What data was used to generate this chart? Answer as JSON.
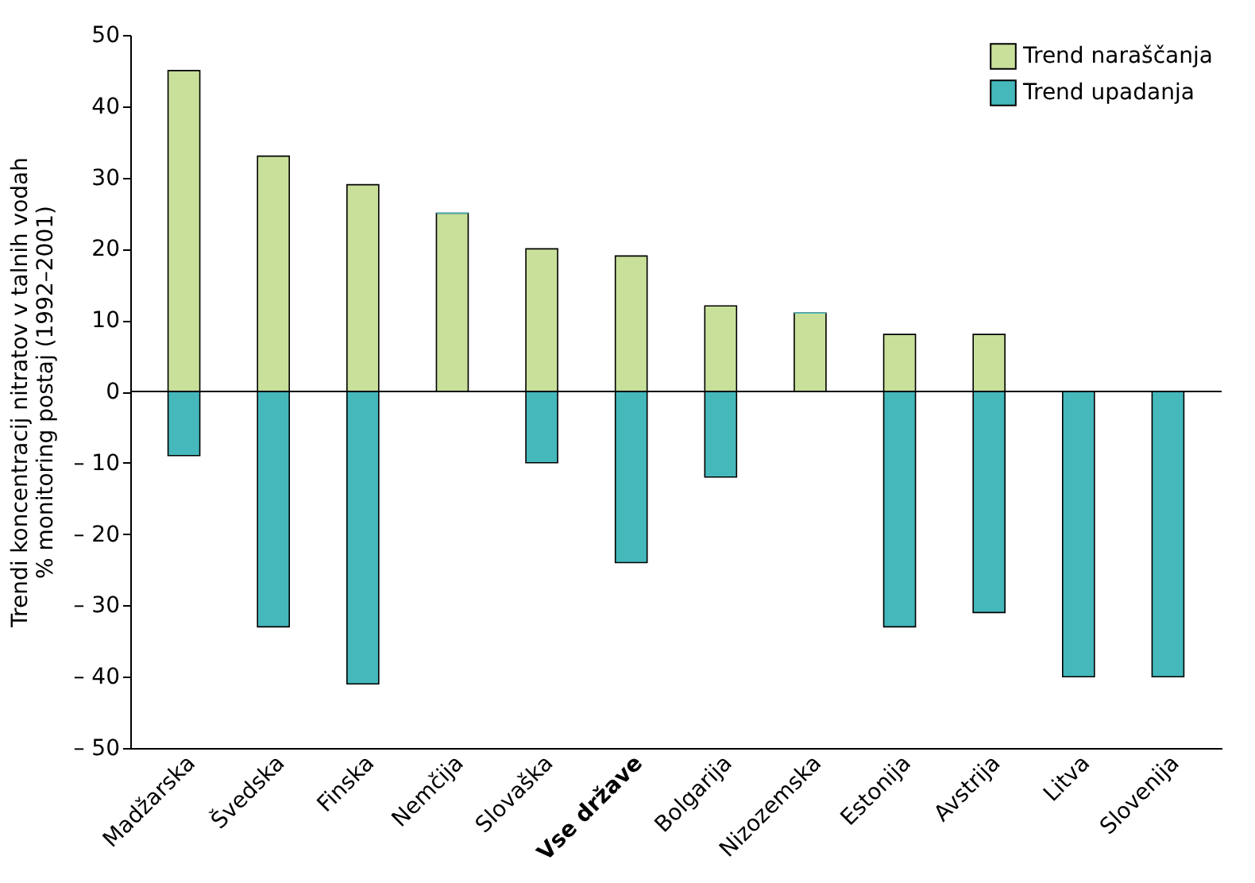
{
  "chart_data": {
    "type": "bar",
    "ylabel": "Trendi koncentracij nitratov v talnih vodah\n% monitoring postaj (1992–2001)",
    "categories": [
      "Madžarska",
      "Švedska",
      "Finska",
      "Nemčija",
      "Slovaška",
      "Vse države",
      "Bolgarija",
      "Nizozemska",
      "Estonija",
      "Avstrija",
      "Litva",
      "Slovenija"
    ],
    "series": [
      {
        "name": "Trend naraščanja",
        "color": "#c8e09a",
        "values": [
          45,
          33,
          29,
          25,
          20,
          19,
          12,
          11,
          8,
          8,
          0,
          0
        ]
      },
      {
        "name": "Trend upadanja",
        "color": "#45b8bc",
        "values": [
          -9,
          -33,
          -41,
          0,
          -10,
          -24,
          -12,
          0,
          -33,
          -31,
          -40,
          -40
        ]
      }
    ],
    "ylim": [
      -50,
      50
    ],
    "yticks": [
      {
        "value": -50,
        "label": "– 50"
      },
      {
        "value": -40,
        "label": "– 40"
      },
      {
        "value": -30,
        "label": "– 30"
      },
      {
        "value": -20,
        "label": "– 20"
      },
      {
        "value": -10,
        "label": "– 10"
      },
      0,
      10,
      20,
      30,
      40,
      50
    ],
    "ref_lines": [
      {
        "axis": "y",
        "value": 0
      }
    ],
    "stacked": true,
    "grid": false,
    "legend": "top right"
  }
}
